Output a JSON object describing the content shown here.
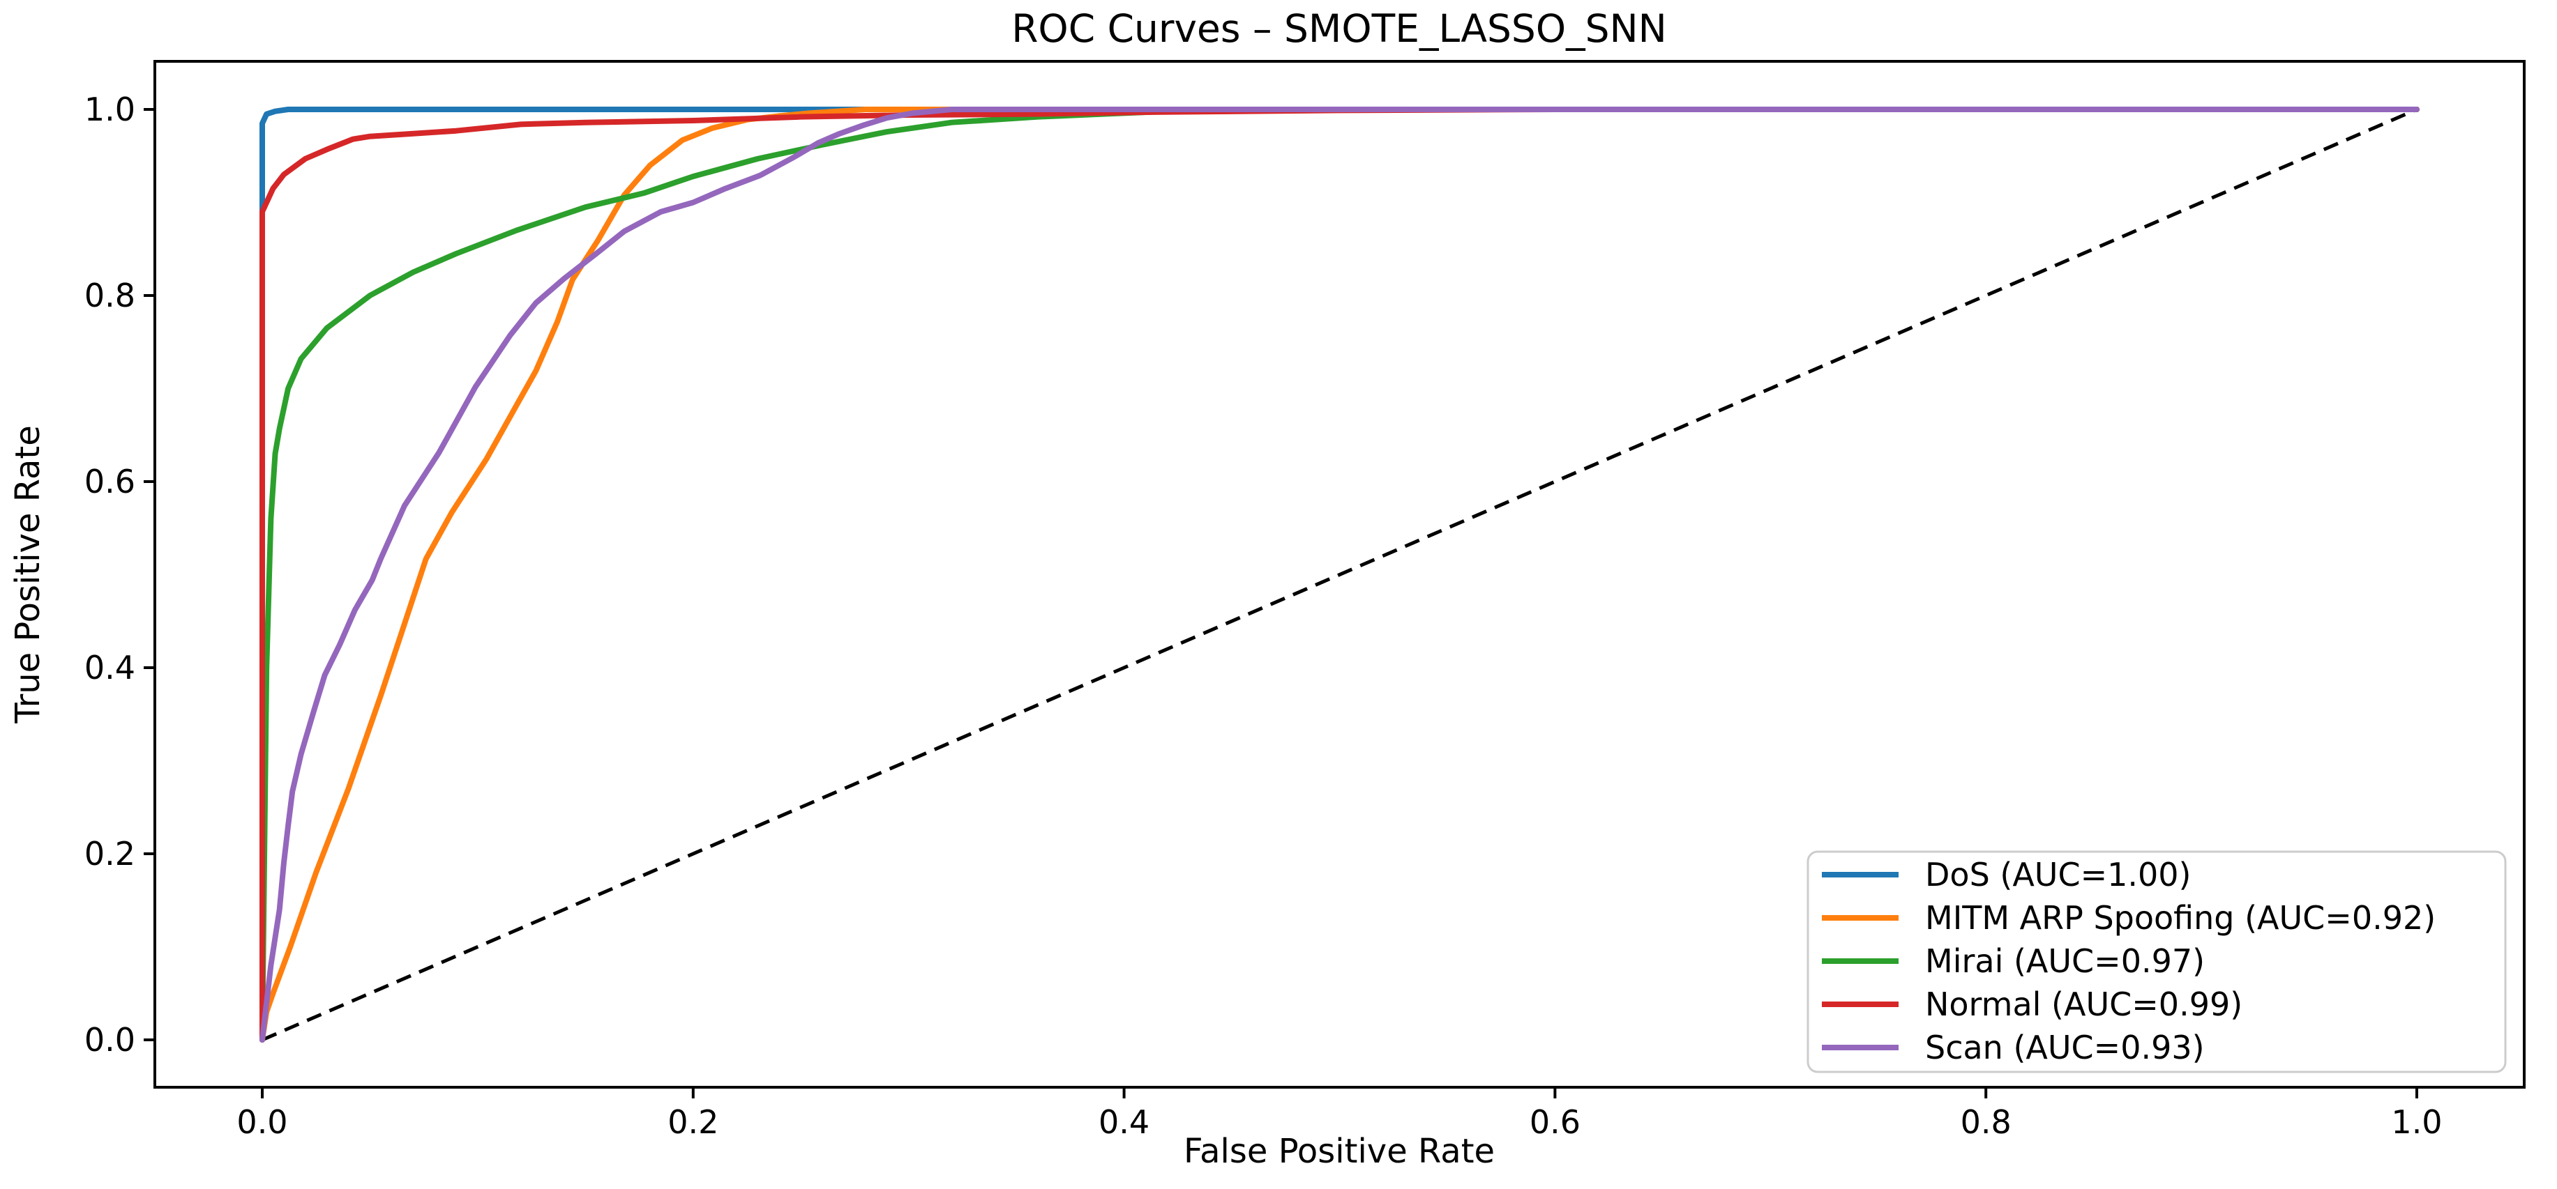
{
  "figure": {
    "title": "ROC Curves – SMOTE_LASSO_SNN",
    "xlabel": "False Positive Rate",
    "ylabel": "True Positive Rate"
  },
  "legend": {
    "position": "lower right",
    "entries": [
      {
        "label": "DoS (AUC=1.00)",
        "color": "#1f77b4"
      },
      {
        "label": "MITM ARP Spoofing (AUC=0.92)",
        "color": "#ff7f0e"
      },
      {
        "label": "Mirai (AUC=0.97)",
        "color": "#2ca02c"
      },
      {
        "label": "Normal (AUC=0.99)",
        "color": "#d62728"
      },
      {
        "label": "Scan (AUC=0.93)",
        "color": "#9467bd"
      }
    ]
  },
  "chart_data": {
    "type": "line",
    "title": "ROC Curves – SMOTE_LASSO_SNN",
    "xlabel": "False Positive Rate",
    "ylabel": "True Positive Rate",
    "xlim": [
      -0.05,
      1.05
    ],
    "ylim": [
      -0.05,
      1.05
    ],
    "x_ticks": [
      0.0,
      0.2,
      0.4,
      0.6,
      0.8,
      1.0
    ],
    "y_ticks": [
      0.0,
      0.2,
      0.4,
      0.6,
      0.8,
      1.0
    ],
    "x_tick_labels": [
      "0.0",
      "0.2",
      "0.4",
      "0.6",
      "0.8",
      "1.0"
    ],
    "y_tick_labels": [
      "0.0",
      "0.2",
      "0.4",
      "0.6",
      "0.8",
      "1.0"
    ],
    "grid": false,
    "legend_position": "lower right",
    "series": [
      {
        "name": "DoS (AUC=1.00)",
        "auc": 1.0,
        "color": "#1f77b4",
        "style": "solid",
        "points": [
          [
            0,
            0
          ],
          [
            0,
            0.985
          ],
          [
            0.002,
            0.995
          ],
          [
            0.006,
            0.998
          ],
          [
            0.012,
            1.0
          ],
          [
            1,
            1
          ]
        ]
      },
      {
        "name": "MITM ARP Spoofing (AUC=0.92)",
        "auc": 0.92,
        "color": "#ff7f0e",
        "style": "solid",
        "points": [
          [
            0,
            0
          ],
          [
            0.002,
            0.03
          ],
          [
            0.005,
            0.05
          ],
          [
            0.013,
            0.1
          ],
          [
            0.025,
            0.18
          ],
          [
            0.04,
            0.27
          ],
          [
            0.055,
            0.37
          ],
          [
            0.065,
            0.44
          ],
          [
            0.076,
            0.517
          ],
          [
            0.088,
            0.567
          ],
          [
            0.104,
            0.624
          ],
          [
            0.118,
            0.682
          ],
          [
            0.127,
            0.719
          ],
          [
            0.137,
            0.772
          ],
          [
            0.144,
            0.817
          ],
          [
            0.156,
            0.86
          ],
          [
            0.168,
            0.908
          ],
          [
            0.18,
            0.94
          ],
          [
            0.195,
            0.967
          ],
          [
            0.209,
            0.98
          ],
          [
            0.225,
            0.989
          ],
          [
            0.24,
            0.993
          ],
          [
            0.254,
            0.996
          ],
          [
            0.28,
            1.0
          ],
          [
            1,
            1
          ]
        ]
      },
      {
        "name": "Mirai (AUC=0.97)",
        "auc": 0.97,
        "color": "#2ca02c",
        "style": "solid",
        "points": [
          [
            0,
            0
          ],
          [
            0.001,
            0.2
          ],
          [
            0.002,
            0.4
          ],
          [
            0.004,
            0.56
          ],
          [
            0.006,
            0.63
          ],
          [
            0.008,
            0.657
          ],
          [
            0.012,
            0.7
          ],
          [
            0.018,
            0.732
          ],
          [
            0.03,
            0.765
          ],
          [
            0.05,
            0.8
          ],
          [
            0.07,
            0.825
          ],
          [
            0.09,
            0.845
          ],
          [
            0.118,
            0.87
          ],
          [
            0.15,
            0.895
          ],
          [
            0.177,
            0.91
          ],
          [
            0.2,
            0.928
          ],
          [
            0.23,
            0.947
          ],
          [
            0.26,
            0.962
          ],
          [
            0.29,
            0.976
          ],
          [
            0.32,
            0.986
          ],
          [
            0.36,
            0.992
          ],
          [
            0.42,
            0.998
          ],
          [
            0.52,
            1.0
          ],
          [
            1,
            1
          ]
        ]
      },
      {
        "name": "Normal (AUC=0.99)",
        "auc": 0.99,
        "color": "#d62728",
        "style": "solid",
        "points": [
          [
            0,
            0
          ],
          [
            0,
            0.89
          ],
          [
            0.002,
            0.9
          ],
          [
            0.005,
            0.915
          ],
          [
            0.01,
            0.93
          ],
          [
            0.02,
            0.947
          ],
          [
            0.03,
            0.957
          ],
          [
            0.042,
            0.968
          ],
          [
            0.05,
            0.971
          ],
          [
            0.07,
            0.974
          ],
          [
            0.09,
            0.977
          ],
          [
            0.12,
            0.984
          ],
          [
            0.15,
            0.986
          ],
          [
            0.2,
            0.988
          ],
          [
            0.25,
            0.992
          ],
          [
            0.3,
            0.994
          ],
          [
            0.36,
            0.995
          ],
          [
            0.41,
            0.997
          ],
          [
            0.5,
            0.999
          ],
          [
            0.6,
            1.0
          ],
          [
            1,
            1
          ]
        ]
      },
      {
        "name": "Scan (AUC=0.93)",
        "auc": 0.93,
        "color": "#9467bd",
        "style": "solid",
        "points": [
          [
            0,
            0
          ],
          [
            0.004,
            0.08
          ],
          [
            0.008,
            0.14
          ],
          [
            0.01,
            0.19
          ],
          [
            0.012,
            0.23
          ],
          [
            0.014,
            0.267
          ],
          [
            0.018,
            0.307
          ],
          [
            0.024,
            0.354
          ],
          [
            0.029,
            0.392
          ],
          [
            0.036,
            0.425
          ],
          [
            0.043,
            0.462
          ],
          [
            0.051,
            0.494
          ],
          [
            0.055,
            0.517
          ],
          [
            0.066,
            0.574
          ],
          [
            0.082,
            0.631
          ],
          [
            0.099,
            0.702
          ],
          [
            0.115,
            0.757
          ],
          [
            0.127,
            0.792
          ],
          [
            0.14,
            0.818
          ],
          [
            0.155,
            0.845
          ],
          [
            0.168,
            0.869
          ],
          [
            0.185,
            0.89
          ],
          [
            0.2,
            0.9
          ],
          [
            0.215,
            0.915
          ],
          [
            0.231,
            0.929
          ],
          [
            0.247,
            0.949
          ],
          [
            0.258,
            0.964
          ],
          [
            0.268,
            0.974
          ],
          [
            0.279,
            0.983
          ],
          [
            0.29,
            0.991
          ],
          [
            0.302,
            0.996
          ],
          [
            0.32,
            1.0
          ],
          [
            1,
            1
          ]
        ]
      }
    ],
    "reference_line": {
      "name": "chance diagonal",
      "color": "#000000",
      "style": "dashed",
      "points": [
        [
          0,
          0
        ],
        [
          1,
          1
        ]
      ]
    }
  }
}
